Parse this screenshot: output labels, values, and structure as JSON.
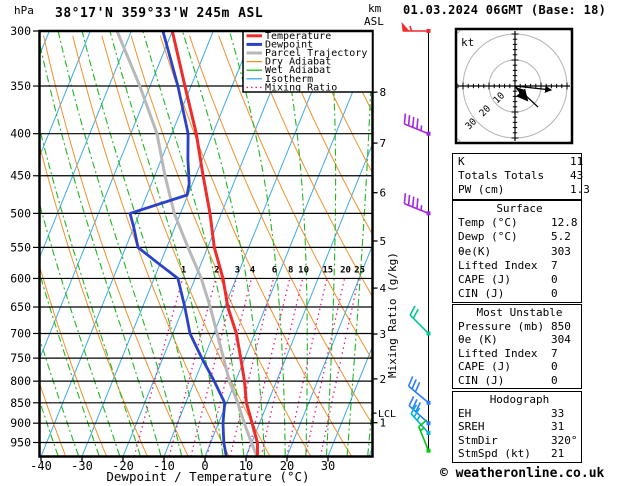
{
  "header": {
    "pressure_unit": "hPa",
    "title": "38°17'N 359°33'W 245m ASL",
    "alt_unit_km": "km",
    "alt_unit_asl": "ASL",
    "datetime": "01.03.2024 06GMT (Base: 18)"
  },
  "chart_data": {
    "type": "skewt-log-p-sounding",
    "pressure_axis": {
      "unit": "hPa",
      "top": 300,
      "bottom": 988,
      "gridlines": [
        300,
        350,
        400,
        450,
        500,
        550,
        600,
        650,
        700,
        750,
        800,
        850,
        900,
        950
      ]
    },
    "temp_axis": {
      "label": "Dewpoint / Temperature (°C)",
      "ticks": [
        -40,
        -30,
        -20,
        -10,
        0,
        10,
        20,
        30
      ],
      "min": -40,
      "max": 41
    },
    "km_axis": {
      "ticks": [
        1,
        2,
        3,
        4,
        5,
        6,
        7,
        8
      ],
      "lcl_label": "LCL",
      "lcl_pressure": 875
    },
    "mixing_ratio_axis_label": "Mixing Ratio (g/kg)",
    "mixing_ratio_values": [
      1,
      2,
      3,
      4,
      6,
      8,
      10,
      15,
      20,
      25
    ],
    "legend": [
      {
        "label": "Temperature",
        "color": "#ee2c2c",
        "style": "solid",
        "width": 3
      },
      {
        "label": "Dewpoint",
        "color": "#2a41c8",
        "style": "solid",
        "width": 3
      },
      {
        "label": "Parcel Trajectory",
        "color": "#b8b8b8",
        "style": "solid",
        "width": 3
      },
      {
        "label": "Dry Adiabat",
        "color": "#f2912d",
        "style": "solid",
        "width": 1.3
      },
      {
        "label": "Wet Adiabat",
        "color": "#1fb81f",
        "style": "solid",
        "width": 1.3
      },
      {
        "label": "Isotherm",
        "color": "#3fabe8",
        "style": "solid",
        "width": 1.3
      },
      {
        "label": "Mixing Ratio",
        "color": "#e81f93",
        "style": "dotted",
        "width": 1.4
      }
    ],
    "series": {
      "temperature": [
        [
          300,
          -50
        ],
        [
          350,
          -41.5
        ],
        [
          400,
          -34
        ],
        [
          450,
          -28.2
        ],
        [
          500,
          -22.8
        ],
        [
          550,
          -18.4
        ],
        [
          600,
          -13.2
        ],
        [
          650,
          -9.2
        ],
        [
          700,
          -4.5
        ],
        [
          750,
          -1
        ],
        [
          800,
          2.2
        ],
        [
          850,
          4.8
        ],
        [
          900,
          8.2
        ],
        [
          950,
          11.4
        ],
        [
          988,
          12.8
        ]
      ],
      "dewpoint": [
        [
          300,
          -52.3
        ],
        [
          350,
          -43.2
        ],
        [
          400,
          -36
        ],
        [
          430,
          -33.5
        ],
        [
          460,
          -30.8
        ],
        [
          475,
          -30.2
        ],
        [
          500,
          -42.3
        ],
        [
          520,
          -40
        ],
        [
          550,
          -37
        ],
        [
          575,
          -30.5
        ],
        [
          600,
          -24.2
        ],
        [
          650,
          -19.7
        ],
        [
          700,
          -15.8
        ],
        [
          750,
          -10.5
        ],
        [
          800,
          -5.2
        ],
        [
          850,
          -0.5
        ],
        [
          900,
          1.1
        ],
        [
          950,
          3.2
        ],
        [
          988,
          5.2
        ]
      ],
      "parcel": [
        [
          300,
          -63.5
        ],
        [
          350,
          -52.5
        ],
        [
          400,
          -43.6
        ],
        [
          450,
          -37.5
        ],
        [
          500,
          -31.5
        ],
        [
          550,
          -24.8
        ],
        [
          600,
          -18.5
        ],
        [
          650,
          -13.5
        ],
        [
          700,
          -9.2
        ],
        [
          750,
          -5.2
        ],
        [
          800,
          -1.5
        ],
        [
          850,
          2.7
        ],
        [
          900,
          6.3
        ],
        [
          950,
          9.9
        ],
        [
          988,
          12.7
        ]
      ]
    },
    "wind_barbs": [
      {
        "p": 300,
        "speed_kt": 55,
        "dir_deg": 270,
        "color": "#ee2c2c"
      },
      {
        "p": 400,
        "speed_kt": 45,
        "dir_deg": 292,
        "color": "#a428e0"
      },
      {
        "p": 500,
        "speed_kt": 45,
        "dir_deg": 292,
        "color": "#a428e0"
      },
      {
        "p": 700,
        "speed_kt": 20,
        "dir_deg": 315,
        "color": "#00c896"
      },
      {
        "p": 850,
        "speed_kt": 30,
        "dir_deg": 310,
        "color": "#2a7cff"
      },
      {
        "p": 900,
        "speed_kt": 30,
        "dir_deg": 312,
        "color": "#2a7cff"
      },
      {
        "p": 925,
        "speed_kt": 25,
        "dir_deg": 318,
        "color": "#00b4d8"
      },
      {
        "p": 972,
        "speed_kt": 15,
        "dir_deg": 338,
        "color": "#00c814"
      }
    ],
    "colors": {
      "grid": "#000000",
      "isotherm": "#3fabe8",
      "dry_adiabat": "#f2912d",
      "wet_adiabat": "#1fb81f",
      "mixing_ratio": "#e81f93",
      "temperature": "#ee2c2c",
      "dewpoint": "#2a41c8",
      "parcel": "#b8b8b8"
    }
  },
  "hodograph": {
    "unit_label": "kt",
    "ring_labels": [
      "10",
      "20",
      "30"
    ],
    "ring_spacing_kt": 10
  },
  "stats": {
    "indices": {
      "rows": [
        [
          "K",
          "11"
        ],
        [
          "Totals Totals",
          "43"
        ],
        [
          "PW (cm)",
          "1.3"
        ]
      ]
    },
    "surface": {
      "title": "Surface",
      "rows": [
        [
          "Temp (°C)",
          "12.8"
        ],
        [
          "Dewp (°C)",
          "5.2"
        ],
        [
          "θe(K)",
          "303"
        ],
        [
          "Lifted Index",
          "7"
        ],
        [
          "CAPE (J)",
          "0"
        ],
        [
          "CIN (J)",
          "0"
        ]
      ]
    },
    "most_unstable": {
      "title": "Most Unstable",
      "rows": [
        [
          "Pressure (mb)",
          "850"
        ],
        [
          "θe (K)",
          "304"
        ],
        [
          "Lifted Index",
          "7"
        ],
        [
          "CAPE (J)",
          "0"
        ],
        [
          "CIN (J)",
          "0"
        ]
      ]
    },
    "hodograph_stats": {
      "title": "Hodograph",
      "rows": [
        [
          "EH",
          "33"
        ],
        [
          "SREH",
          "31"
        ],
        [
          "StmDir",
          "320°"
        ],
        [
          "StmSpd (kt)",
          "21"
        ]
      ]
    }
  },
  "footer": {
    "copyright": "© weatheronline.co.uk"
  }
}
